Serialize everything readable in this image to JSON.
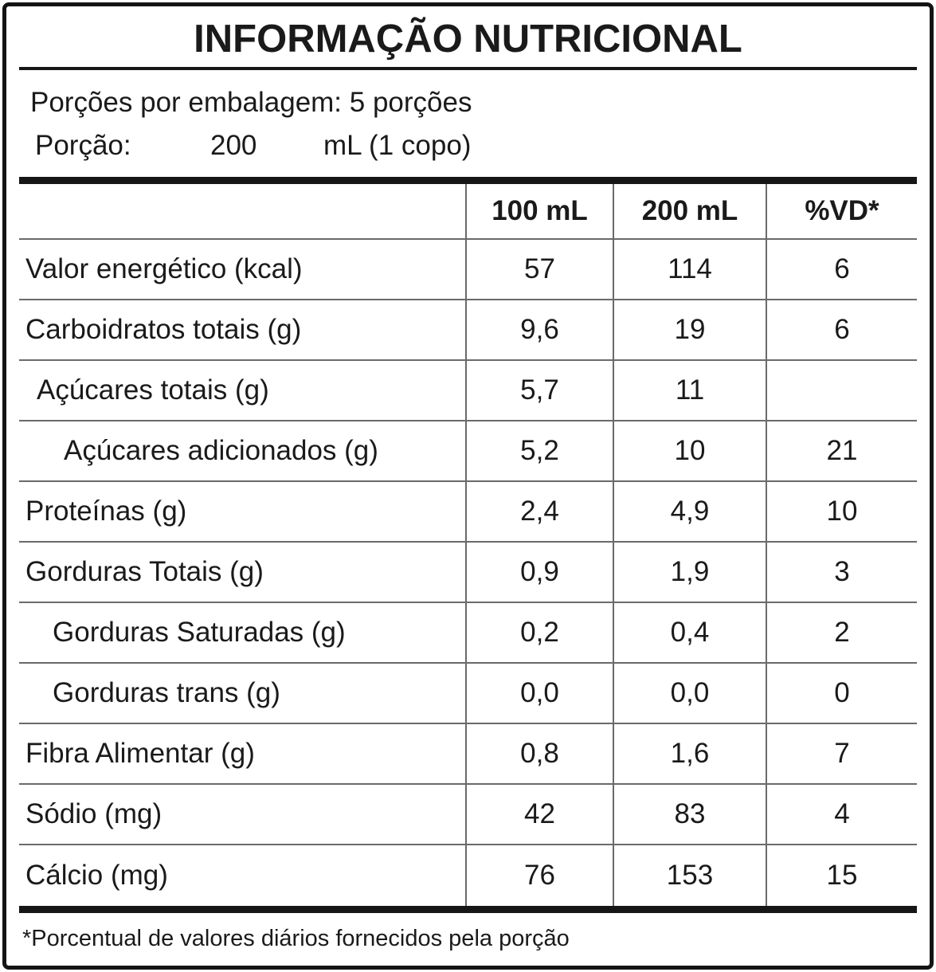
{
  "label": {
    "title": "INFORMAÇÃO NUTRICIONAL",
    "servings_per_package": "Porções por embalagem: 5 porções",
    "portion": {
      "label": "Porção:",
      "amount": "200",
      "unit": "mL (1 copo)"
    },
    "footnote": "*Porcentual de valores diários fornecidos pela porção"
  },
  "table": {
    "columns": [
      "100 mL",
      "200 mL",
      "%VD*"
    ],
    "rows": [
      {
        "name": "Valor energético (kcal)",
        "indent": 0,
        "per100": "57",
        "per200": "114",
        "vd": "6"
      },
      {
        "name": "Carboidratos totais (g)",
        "indent": 0,
        "per100": "9,6",
        "per200": "19",
        "vd": "6"
      },
      {
        "name": "Açúcares totais (g)",
        "indent": 1,
        "per100": "5,7",
        "per200": "11",
        "vd": ""
      },
      {
        "name": "Açúcares adicionados (g)",
        "indent": 3,
        "per100": "5,2",
        "per200": "10",
        "vd": "21"
      },
      {
        "name": "Proteínas (g)",
        "indent": 0,
        "per100": "2,4",
        "per200": "4,9",
        "vd": "10"
      },
      {
        "name": "Gorduras Totais (g)",
        "indent": 0,
        "per100": "0,9",
        "per200": "1,9",
        "vd": "3"
      },
      {
        "name": "Gorduras Saturadas (g)",
        "indent": 2,
        "per100": "0,2",
        "per200": "0,4",
        "vd": "2"
      },
      {
        "name": "Gorduras trans (g)",
        "indent": 2,
        "per100": "0,0",
        "per200": "0,0",
        "vd": "0"
      },
      {
        "name": "Fibra Alimentar (g)",
        "indent": 0,
        "per100": "0,8",
        "per200": "1,6",
        "vd": "7"
      },
      {
        "name": "Sódio (mg)",
        "indent": 0,
        "per100": "42",
        "per200": "83",
        "vd": "4"
      },
      {
        "name": "Cálcio (mg)",
        "indent": 0,
        "per100": "76",
        "per200": "153",
        "vd": "15"
      }
    ]
  }
}
